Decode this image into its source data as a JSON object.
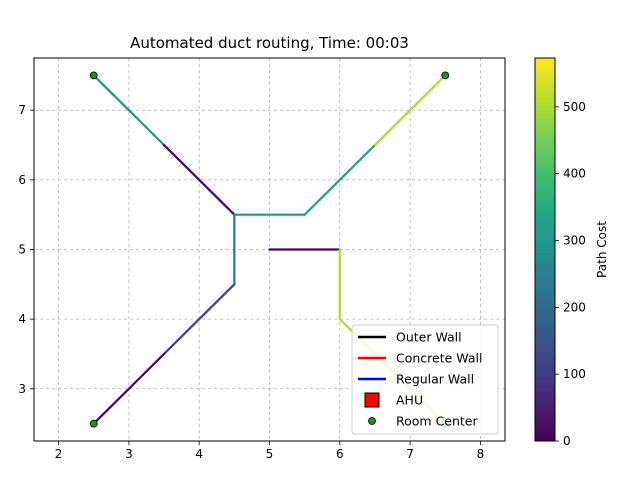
{
  "chart_data": {
    "type": "line",
    "title": "Automated duct routing, Time: 00:03",
    "xlabel": "",
    "ylabel": "",
    "xlim": [
      1.65,
      8.35
    ],
    "ylim": [
      2.25,
      7.75
    ],
    "x_ticks": [
      2,
      3,
      4,
      5,
      6,
      7,
      8
    ],
    "y_ticks": [
      3,
      4,
      5,
      6,
      7
    ],
    "grid": true,
    "colorbar": {
      "label": "Path Cost",
      "min": 0,
      "max": 573,
      "ticks": [
        0,
        100,
        200,
        300,
        400,
        500
      ],
      "colormap": "viridis"
    },
    "duct_segments": [
      {
        "from": [
          2.5,
          7.5
        ],
        "to": [
          3.5,
          6.5
        ],
        "cost": 300
      },
      {
        "from": [
          3.5,
          6.5
        ],
        "to": [
          4.5,
          5.5
        ],
        "cost": 15
      },
      {
        "from": [
          4.5,
          5.5
        ],
        "to": [
          5.5,
          5.5
        ],
        "cost": 300
      },
      {
        "from": [
          5.5,
          5.5
        ],
        "to": [
          6.5,
          6.5
        ],
        "cost": 330
      },
      {
        "from": [
          6.5,
          6.5
        ],
        "to": [
          7.5,
          7.5
        ],
        "cost": 500
      },
      {
        "from": [
          4.5,
          5.5
        ],
        "to": [
          4.5,
          4.5
        ],
        "cost": 230
      },
      {
        "from": [
          4.5,
          4.5
        ],
        "to": [
          3.5,
          3.5
        ],
        "cost": 110
      },
      {
        "from": [
          3.5,
          3.5
        ],
        "to": [
          2.5,
          2.5
        ],
        "cost": 15
      },
      {
        "from": [
          5.0,
          5.0
        ],
        "to": [
          6.0,
          5.0
        ],
        "cost": 10
      },
      {
        "from": [
          6.0,
          5.0
        ],
        "to": [
          6.0,
          4.0
        ],
        "cost": 500
      },
      {
        "from": [
          6.0,
          4.0
        ],
        "to": [
          6.5,
          3.5
        ],
        "cost": 500
      },
      {
        "from": [
          6.5,
          3.5
        ],
        "to": [
          7.5,
          2.5
        ],
        "cost": 500
      }
    ],
    "room_centers": [
      [
        2.5,
        7.5
      ],
      [
        7.5,
        7.5
      ],
      [
        2.5,
        2.5
      ],
      [
        7.5,
        2.5
      ]
    ],
    "legend": {
      "placement": "lower-right",
      "entries": [
        {
          "label": "Outer Wall",
          "kind": "line",
          "color": "#000000"
        },
        {
          "label": "Concrete Wall",
          "kind": "line",
          "color": "#ff0000"
        },
        {
          "label": "Regular Wall",
          "kind": "line",
          "color": "#0000ff"
        },
        {
          "label": "AHU",
          "kind": "square",
          "color": "#ff0000"
        },
        {
          "label": "Room Center",
          "kind": "circle",
          "color": "#228b22"
        }
      ]
    }
  }
}
